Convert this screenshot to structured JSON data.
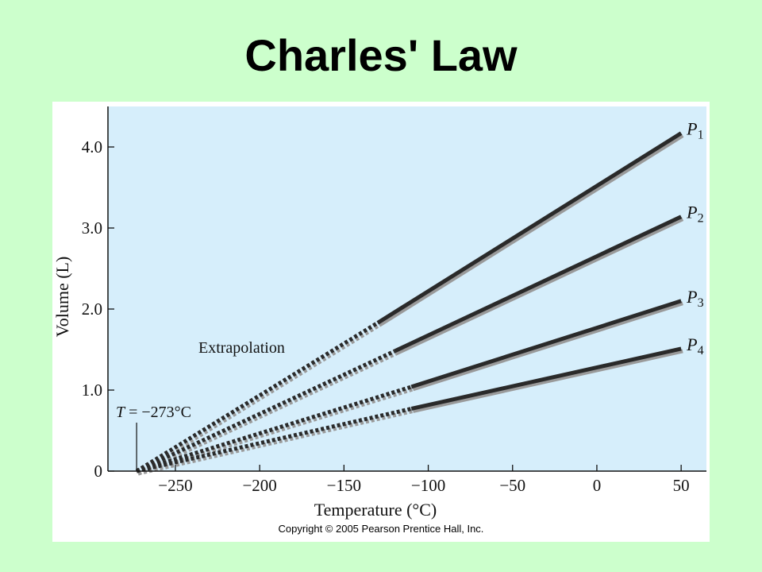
{
  "slide": {
    "title": "Charles' Law",
    "copyright": "Copyright © 2005 Pearson Prentice Hall, Inc."
  },
  "colors": {
    "slide_background": "#ccffcc",
    "plot_background": "#d6eefb",
    "line": "#2a2a2a",
    "line_shadow": "#9a9a9a"
  },
  "chart_data": {
    "type": "line",
    "title": "",
    "xlabel": "Temperature (°C)",
    "ylabel": "Volume (L)",
    "xlim": [
      -290,
      65
    ],
    "ylim": [
      0,
      4.5
    ],
    "grid": false,
    "x_ticks": [
      -250,
      -200,
      -150,
      -100,
      -50,
      0,
      50
    ],
    "x_tick_labels": [
      "−250",
      "−200",
      "−150",
      "−100",
      "−50",
      "0",
      "50"
    ],
    "y_ticks": [
      0,
      1,
      2,
      3,
      4
    ],
    "y_tick_labels": [
      "0",
      "1.0",
      "2.0",
      "3.0",
      "4.0"
    ],
    "series": [
      {
        "name": "P",
        "subscript": "1",
        "extrapolated": [
          [
            -273,
            0
          ],
          [
            -130,
            1.83
          ]
        ],
        "measured": [
          [
            -130,
            1.83
          ],
          [
            50,
            4.17
          ]
        ]
      },
      {
        "name": "P",
        "subscript": "2",
        "extrapolated": [
          [
            -273,
            0
          ],
          [
            -120,
            1.48
          ]
        ],
        "measured": [
          [
            -120,
            1.48
          ],
          [
            50,
            3.14
          ]
        ]
      },
      {
        "name": "P",
        "subscript": "3",
        "extrapolated": [
          [
            -273,
            0
          ],
          [
            -110,
            1.04
          ]
        ],
        "measured": [
          [
            -110,
            1.04
          ],
          [
            50,
            2.1
          ]
        ]
      },
      {
        "name": "P",
        "subscript": "4",
        "extrapolated": [
          [
            -273,
            0
          ],
          [
            -110,
            0.77
          ]
        ],
        "measured": [
          [
            -110,
            0.77
          ],
          [
            50,
            1.51
          ]
        ]
      }
    ],
    "annotations": {
      "extrapolation": "Extrapolation",
      "absolute_zero_prefix": "T",
      "absolute_zero_value": " = −273°C",
      "absolute_zero_x": -273
    }
  }
}
